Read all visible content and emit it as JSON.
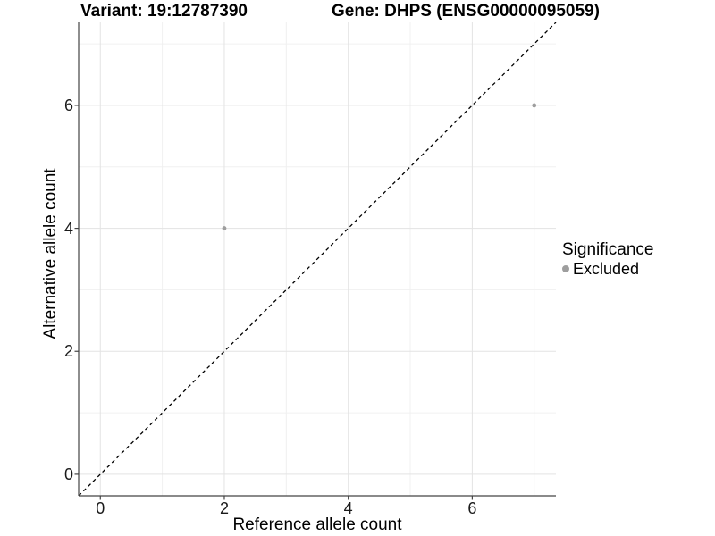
{
  "figure": {
    "title_left": "Variant: 19:12787390",
    "title_right": "Gene: DHPS (ENSG00000095059)"
  },
  "legend": {
    "title": "Significance",
    "items": [
      {
        "label": "Excluded",
        "color": "#9e9e9e"
      }
    ]
  },
  "chart_data": {
    "type": "scatter",
    "xlabel": "Reference allele count",
    "ylabel": "Alternative allele count",
    "xlim": [
      -0.35,
      7.35
    ],
    "ylim": [
      -0.35,
      7.35
    ],
    "x_ticks": {
      "values": [
        0,
        2,
        4,
        6
      ],
      "labels": [
        "0",
        "2",
        "4",
        "6"
      ]
    },
    "y_ticks": {
      "values": [
        0,
        2,
        4,
        6
      ],
      "labels": [
        "0",
        "2",
        "4",
        "6"
      ]
    },
    "x_minor": [
      1,
      3,
      5,
      7
    ],
    "y_minor": [
      1,
      3,
      5,
      7
    ],
    "grid": "major+minor",
    "legend_position": "right",
    "identity_line": {
      "slope": 1,
      "intercept": 0,
      "style": "dashed",
      "color": "#000000"
    },
    "series": [
      {
        "name": "Excluded",
        "color": "#9e9e9e",
        "marker": "circle",
        "points": [
          {
            "x": 2,
            "y": 4
          },
          {
            "x": 7,
            "y": 6
          }
        ]
      }
    ],
    "colors": {
      "grid_major": "#e3e3e3",
      "grid_minor": "#f0f0f0",
      "axis_line": "#444444",
      "tick_text": "#1a1a1a"
    }
  }
}
